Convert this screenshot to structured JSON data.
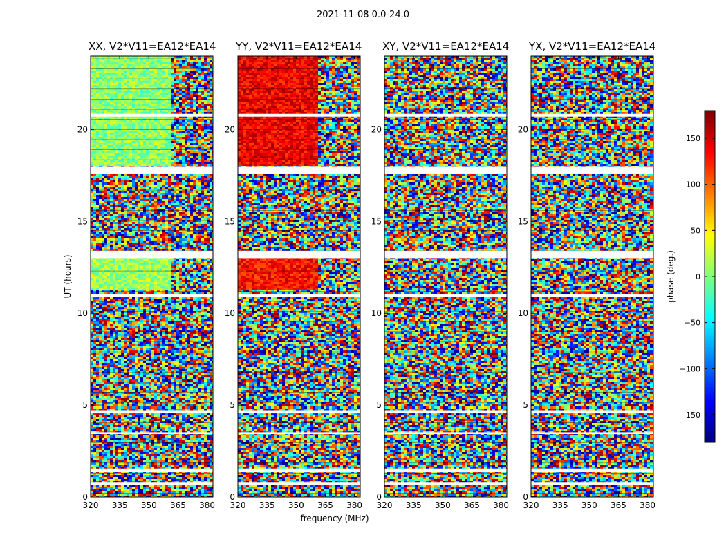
{
  "figure": {
    "suptitle": "2021-11-08 0.0-24.0",
    "xlabel": "frequency (MHz)",
    "ylabel": "UT (hours)",
    "colorbar_label": "phase (deg.)",
    "colormap": "jet"
  },
  "chart_data": [
    {
      "type": "heatmap",
      "title": "XX, V2*V11=EA12*EA14",
      "xlabel": "",
      "ylabel": "UT (hours)",
      "xlim": [
        320,
        383
      ],
      "ylim": [
        0,
        24
      ],
      "xticks": [
        "320",
        "335",
        "350",
        "365",
        "380"
      ],
      "yticks": [
        "0",
        "5",
        "10",
        "15",
        "20"
      ],
      "value": "phase (deg.)",
      "dominant_phase_deg": {
        "UT 18-24, 320-361 MHz": 5,
        "UT 11.2-13, 320-361 MHz": 10
      },
      "noise": "random phase elsewhere"
    },
    {
      "type": "heatmap",
      "title": "YY, V2*V11=EA12*EA14",
      "xlabel": "frequency (MHz)",
      "xlim": [
        320,
        383
      ],
      "ylim": [
        0,
        24
      ],
      "xticks": [
        "320",
        "335",
        "350",
        "365",
        "380"
      ],
      "yticks": [
        "0",
        "5",
        "10",
        "15",
        "20"
      ],
      "value": "phase (deg.)",
      "dominant_phase_deg": {
        "UT 18-24, 320-361 MHz": 140,
        "UT 11.2-13, 320-361 MHz": 130
      },
      "noise": "random phase elsewhere"
    },
    {
      "type": "heatmap",
      "title": "XY, V2*V11=EA12*EA14",
      "xlabel": "",
      "xlim": [
        320,
        383
      ],
      "ylim": [
        0,
        24
      ],
      "xticks": [
        "320",
        "335",
        "350",
        "365",
        "380"
      ],
      "yticks": [
        "0",
        "5",
        "10",
        "15",
        "20"
      ],
      "value": "phase (deg.)",
      "noise": "random phase throughout"
    },
    {
      "type": "heatmap",
      "title": "YX, V2*V11=EA12*EA14",
      "xlabel": "",
      "xlim": [
        320,
        383
      ],
      "ylim": [
        0,
        24
      ],
      "xticks": [
        "320",
        "335",
        "350",
        "365",
        "380"
      ],
      "yticks": [
        "0",
        "5",
        "10",
        "15",
        "20"
      ],
      "value": "phase (deg.)",
      "noise": "random phase throughout"
    }
  ],
  "colorbar": {
    "range": [
      -180,
      180
    ],
    "ticks": [
      "150",
      "100",
      "50",
      "0",
      "−50",
      "−100",
      "−150"
    ],
    "tick_values": [
      150,
      100,
      50,
      0,
      -50,
      -100,
      -150
    ]
  },
  "flagged_gaps_ut": [
    [
      0.66,
      0.78
    ],
    [
      1.35,
      1.55
    ],
    [
      3.42,
      3.52
    ],
    [
      4.55,
      4.72
    ],
    [
      10.9,
      11.05
    ],
    [
      13.0,
      13.4
    ],
    [
      17.6,
      18.0
    ],
    [
      20.7,
      20.85
    ]
  ]
}
